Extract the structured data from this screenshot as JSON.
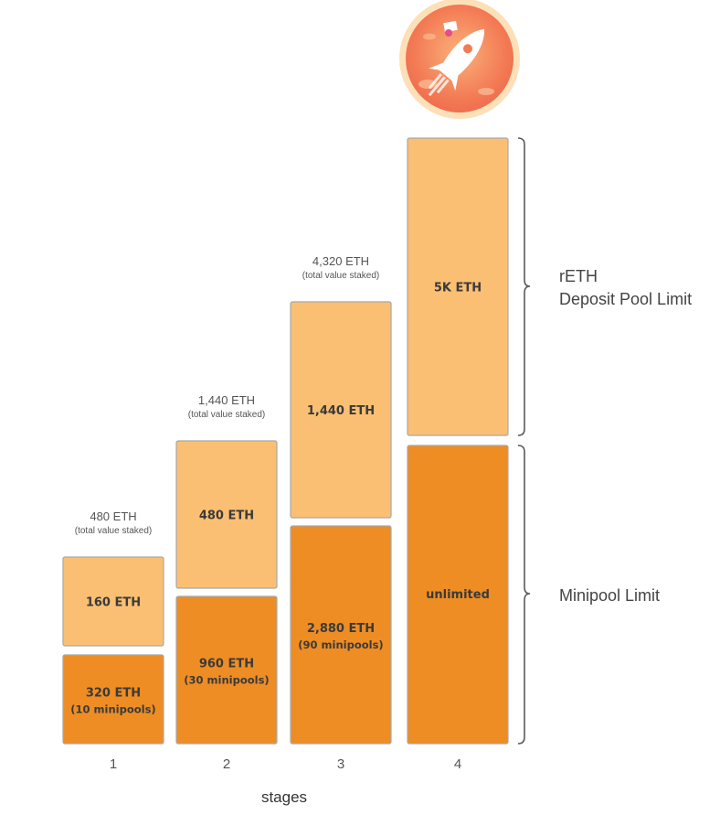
{
  "chart_data": {
    "type": "bar",
    "stacked": true,
    "xlabel": "stages",
    "categories": [
      "1",
      "2",
      "3",
      "4"
    ],
    "series": [
      {
        "name": "Minipool Limit",
        "color": "#ee8d24",
        "values": [
          320,
          960,
          2880,
          null
        ],
        "labels": [
          "320 ETH",
          "960 ETH",
          "2,880 ETH",
          "unlimited"
        ],
        "sublabels": [
          "(10 minipools)",
          "(30 minipools)",
          "(90 minipools)",
          ""
        ]
      },
      {
        "name": "rETH Deposit Pool Limit",
        "color": "#fbbf73",
        "values": [
          160,
          480,
          1440,
          5000
        ],
        "labels": [
          "160 ETH",
          "480 ETH",
          "1,440 ETH",
          "5K ETH"
        ]
      }
    ],
    "totals": [
      {
        "value": "480 ETH",
        "note": "(total value staked)"
      },
      {
        "value": "1,440 ETH",
        "note": "(total value staked)"
      },
      {
        "value": "4,320 ETH",
        "note": "(total value staked)"
      },
      null
    ],
    "brace_labels": {
      "upper": [
        "rETH",
        "Deposit Pool Limit"
      ],
      "lower": "Minipool Limit"
    },
    "logo_icon": "rocket-logo-icon",
    "colors": {
      "minipool": "#ee8d24",
      "deposit": "#fbbf73",
      "outline": "#a8a8a8"
    }
  }
}
